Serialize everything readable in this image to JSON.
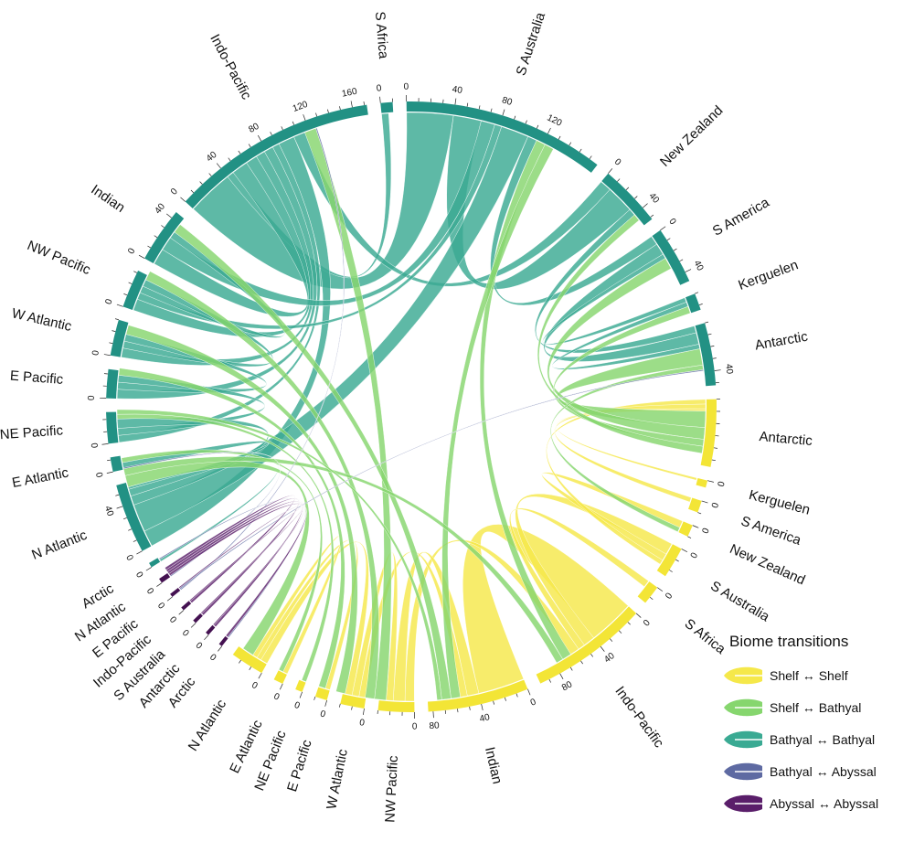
{
  "chart_data": {
    "type": "chord",
    "title": "",
    "legend": {
      "title": "Biome transitions",
      "items": [
        {
          "label": "Shelf ↔ Shelf",
          "color": "#f5e84a"
        },
        {
          "label": "Shelf ↔ Bathyal",
          "color": "#86d66e"
        },
        {
          "label": "Bathyal ↔ Bathyal",
          "color": "#3aaa93"
        },
        {
          "label": "Bathyal ↔ Abyssal",
          "color": "#5e6aa2"
        },
        {
          "label": "Abyssal ↔ Abyssal",
          "color": "#5a1e6a"
        }
      ]
    },
    "biome_colors": {
      "Bathyal": "#229184",
      "Shelf": "#f3e536",
      "Abyssal": "#441151"
    },
    "sectors": [
      {
        "name": "S Africa",
        "biome": "Bathyal",
        "total": 10,
        "ticks": [
          0
        ]
      },
      {
        "name": "S Australia",
        "biome": "Bathyal",
        "total": 168,
        "ticks": [
          0,
          40,
          80,
          120
        ]
      },
      {
        "name": "New Zealand",
        "biome": "Bathyal",
        "total": 52,
        "ticks": [
          0,
          40
        ]
      },
      {
        "name": "S America",
        "biome": "Bathyal",
        "total": 48,
        "ticks": [
          0,
          40
        ]
      },
      {
        "name": "Kerguelen",
        "biome": "Bathyal",
        "total": 14,
        "ticks": []
      },
      {
        "name": "Antarctic",
        "biome": "Bathyal",
        "total": 52,
        "ticks": [
          40
        ]
      },
      {
        "name": "Antarctic",
        "biome": "Shelf",
        "total": 56,
        "ticks": []
      },
      {
        "name": "Kerguelen",
        "biome": "Shelf",
        "total": 6,
        "ticks": [
          0
        ]
      },
      {
        "name": "S America",
        "biome": "Shelf",
        "total": 10,
        "ticks": [
          0
        ]
      },
      {
        "name": "New Zealand",
        "biome": "Shelf",
        "total": 10,
        "ticks": [
          0
        ]
      },
      {
        "name": "S Australia",
        "biome": "Shelf",
        "total": 26,
        "ticks": [
          0
        ]
      },
      {
        "name": "S Africa",
        "biome": "Shelf",
        "total": 16,
        "ticks": [
          0
        ]
      },
      {
        "name": "Indo-Pacific",
        "biome": "Shelf",
        "total": 98,
        "ticks": [
          0,
          40,
          80
        ]
      },
      {
        "name": "Indian",
        "biome": "Shelf",
        "total": 84,
        "ticks": [
          0,
          40,
          80
        ]
      },
      {
        "name": "NW Pacific",
        "biome": "Shelf",
        "total": 30,
        "ticks": [
          0
        ]
      },
      {
        "name": "W Atlantic",
        "biome": "Shelf",
        "total": 20,
        "ticks": [
          0
        ]
      },
      {
        "name": "E Pacific",
        "biome": "Shelf",
        "total": 10,
        "ticks": [
          0
        ]
      },
      {
        "name": "NE Pacific",
        "biome": "Shelf",
        "total": 6,
        "ticks": [
          0
        ]
      },
      {
        "name": "E Atlantic",
        "biome": "Shelf",
        "total": 8,
        "ticks": [
          0
        ]
      },
      {
        "name": "N Atlantic",
        "biome": "Shelf",
        "total": 28,
        "ticks": [
          0
        ]
      },
      {
        "name": "Arctic",
        "biome": "Abyssal",
        "total": 3,
        "ticks": [
          0
        ]
      },
      {
        "name": "Antarctic",
        "biome": "Abyssal",
        "total": 3,
        "ticks": [
          0
        ]
      },
      {
        "name": "S Australia",
        "biome": "Abyssal",
        "total": 3,
        "ticks": [
          0
        ]
      },
      {
        "name": "Indo-Pacific",
        "biome": "Abyssal",
        "total": 3,
        "ticks": [
          0
        ]
      },
      {
        "name": "E Pacific",
        "biome": "Abyssal",
        "total": 3,
        "ticks": [
          0
        ]
      },
      {
        "name": "N Atlantic",
        "biome": "Abyssal",
        "total": 4,
        "ticks": [
          0
        ]
      },
      {
        "name": "Arctic",
        "biome": "Bathyal",
        "total": 4,
        "ticks": [
          0
        ]
      },
      {
        "name": "N Atlantic",
        "biome": "Bathyal",
        "total": 58,
        "ticks": [
          0,
          40
        ]
      },
      {
        "name": "E Atlantic",
        "biome": "Bathyal",
        "total": 12,
        "ticks": [
          0
        ]
      },
      {
        "name": "NE Pacific",
        "biome": "Bathyal",
        "total": 26,
        "ticks": [
          0
        ]
      },
      {
        "name": "E Pacific",
        "biome": "Bathyal",
        "total": 24,
        "ticks": [
          0
        ]
      },
      {
        "name": "W Atlantic",
        "biome": "Bathyal",
        "total": 30,
        "ticks": [
          0
        ]
      },
      {
        "name": "NW Pacific",
        "biome": "Bathyal",
        "total": 32,
        "ticks": [
          0
        ]
      },
      {
        "name": "Indian",
        "biome": "Bathyal",
        "total": 46,
        "ticks": [
          0,
          40
        ]
      },
      {
        "name": "Indo-Pacific",
        "biome": "Bathyal",
        "total": 172,
        "ticks": [
          0,
          40,
          80,
          120,
          160
        ]
      }
    ],
    "links": [
      {
        "from": 34,
        "to": 1,
        "type": "Bathyal ↔ Bathyal",
        "value": 40
      },
      {
        "from": 34,
        "to": 0,
        "type": "Bathyal ↔ Bathyal",
        "value": 6
      },
      {
        "from": 34,
        "to": 33,
        "type": "Bathyal ↔ Bathyal",
        "value": 14
      },
      {
        "from": 34,
        "to": 32,
        "type": "Bathyal ↔ Bathyal",
        "value": 10
      },
      {
        "from": 34,
        "to": 31,
        "type": "Bathyal ↔ Bathyal",
        "value": 8
      },
      {
        "from": 34,
        "to": 30,
        "type": "Bathyal ↔ Bathyal",
        "value": 8
      },
      {
        "from": 34,
        "to": 29,
        "type": "Bathyal ↔ Bathyal",
        "value": 6
      },
      {
        "from": 34,
        "to": 27,
        "type": "Bathyal ↔ Bathyal",
        "value": 14
      },
      {
        "from": 34,
        "to": 2,
        "type": "Bathyal ↔ Bathyal",
        "value": 10
      },
      {
        "from": 1,
        "to": 2,
        "type": "Bathyal ↔ Bathyal",
        "value": 24
      },
      {
        "from": 1,
        "to": 33,
        "type": "Bathyal ↔ Bathyal",
        "value": 12
      },
      {
        "from": 1,
        "to": 32,
        "type": "Bathyal ↔ Bathyal",
        "value": 6
      },
      {
        "from": 1,
        "to": 27,
        "type": "Bathyal ↔ Bathyal",
        "value": 24
      },
      {
        "from": 1,
        "to": 3,
        "type": "Bathyal ↔ Bathyal",
        "value": 8
      },
      {
        "from": 2,
        "to": 5,
        "type": "Bathyal ↔ Bathyal",
        "value": 6
      },
      {
        "from": 3,
        "to": 5,
        "type": "Bathyal ↔ Bathyal",
        "value": 10
      },
      {
        "from": 3,
        "to": 4,
        "type": "Bathyal ↔ Bathyal",
        "value": 4
      },
      {
        "from": 4,
        "to": 5,
        "type": "Bathyal ↔ Bathyal",
        "value": 4
      },
      {
        "from": 33,
        "to": 32,
        "type": "Bathyal ↔ Bathyal",
        "value": 6
      },
      {
        "from": 32,
        "to": 31,
        "type": "Bathyal ↔ Bathyal",
        "value": 6
      },
      {
        "from": 31,
        "to": 30,
        "type": "Bathyal ↔ Bathyal",
        "value": 6
      },
      {
        "from": 30,
        "to": 29,
        "type": "Bathyal ↔ Bathyal",
        "value": 6
      },
      {
        "from": 29,
        "to": 27,
        "type": "Bathyal ↔ Bathyal",
        "value": 8
      },
      {
        "from": 28,
        "to": 27,
        "type": "Bathyal ↔ Bathyal",
        "value": 6
      },
      {
        "from": 26,
        "to": 27,
        "type": "Bathyal ↔ Bathyal",
        "value": 2
      },
      {
        "from": 13,
        "to": 12,
        "type": "Shelf ↔ Shelf",
        "value": 40
      },
      {
        "from": 12,
        "to": 10,
        "type": "Shelf ↔ Shelf",
        "value": 10
      },
      {
        "from": 12,
        "to": 11,
        "type": "Shelf ↔ Shelf",
        "value": 6
      },
      {
        "from": 12,
        "to": 14,
        "type": "Shelf ↔ Shelf",
        "value": 8
      },
      {
        "from": 13,
        "to": 14,
        "type": "Shelf ↔ Shelf",
        "value": 10
      },
      {
        "from": 13,
        "to": 15,
        "type": "Shelf ↔ Shelf",
        "value": 6
      },
      {
        "from": 14,
        "to": 15,
        "type": "Shelf ↔ Shelf",
        "value": 6
      },
      {
        "from": 15,
        "to": 19,
        "type": "Shelf ↔ Shelf",
        "value": 6
      },
      {
        "from": 16,
        "to": 19,
        "type": "Shelf ↔ Shelf",
        "value": 4
      },
      {
        "from": 18,
        "to": 19,
        "type": "Shelf ↔ Shelf",
        "value": 4
      },
      {
        "from": 10,
        "to": 9,
        "type": "Shelf ↔ Shelf",
        "value": 6
      },
      {
        "from": 10,
        "to": 6,
        "type": "Shelf ↔ Shelf",
        "value": 4
      },
      {
        "from": 6,
        "to": 8,
        "type": "Shelf ↔ Shelf",
        "value": 4
      },
      {
        "from": 6,
        "to": 7,
        "type": "Shelf ↔ Shelf",
        "value": 2
      },
      {
        "from": 34,
        "to": 14,
        "type": "Shelf ↔ Bathyal",
        "value": 10
      },
      {
        "from": 1,
        "to": 12,
        "type": "Shelf ↔ Bathyal",
        "value": 8
      },
      {
        "from": 1,
        "to": 13,
        "type": "Shelf ↔ Bathyal",
        "value": 8
      },
      {
        "from": 5,
        "to": 6,
        "type": "Shelf ↔ Bathyal",
        "value": 14
      },
      {
        "from": 3,
        "to": 6,
        "type": "Shelf ↔ Bathyal",
        "value": 10
      },
      {
        "from": 4,
        "to": 6,
        "type": "Shelf ↔ Bathyal",
        "value": 6
      },
      {
        "from": 2,
        "to": 6,
        "type": "Shelf ↔ Bathyal",
        "value": 6
      },
      {
        "from": 5,
        "to": 9,
        "type": "Shelf ↔ Bathyal",
        "value": 4
      },
      {
        "from": 33,
        "to": 13,
        "type": "Shelf ↔ Bathyal",
        "value": 8
      },
      {
        "from": 32,
        "to": 14,
        "type": "Shelf ↔ Bathyal",
        "value": 8
      },
      {
        "from": 31,
        "to": 15,
        "type": "Shelf ↔ Bathyal",
        "value": 8
      },
      {
        "from": 30,
        "to": 16,
        "type": "Shelf ↔ Bathyal",
        "value": 6
      },
      {
        "from": 29,
        "to": 17,
        "type": "Shelf ↔ Bathyal",
        "value": 4
      },
      {
        "from": 28,
        "to": 18,
        "type": "Shelf ↔ Bathyal",
        "value": 4
      },
      {
        "from": 27,
        "to": 19,
        "type": "Shelf ↔ Bathyal",
        "value": 10
      },
      {
        "from": 27,
        "to": 12,
        "type": "Shelf ↔ Bathyal",
        "value": 6
      },
      {
        "from": 29,
        "to": 13,
        "type": "Shelf ↔ Bathyal",
        "value": 4
      },
      {
        "from": 34,
        "to": 24,
        "type": "Bathyal ↔ Abyssal",
        "value": 1
      },
      {
        "from": 5,
        "to": 24,
        "type": "Bathyal ↔ Abyssal",
        "value": 1
      },
      {
        "from": 27,
        "to": 25,
        "type": "Bathyal ↔ Abyssal",
        "value": 1
      },
      {
        "from": 26,
        "to": 20,
        "type": "Bathyal ↔ Abyssal",
        "value": 1
      },
      {
        "from": 25,
        "to": 20,
        "type": "Abyssal ↔ Abyssal",
        "value": 2
      },
      {
        "from": 25,
        "to": 21,
        "type": "Abyssal ↔ Abyssal",
        "value": 2
      },
      {
        "from": 25,
        "to": 22,
        "type": "Abyssal ↔ Abyssal",
        "value": 2
      },
      {
        "from": 25,
        "to": 23,
        "type": "Abyssal ↔ Abyssal",
        "value": 2
      },
      {
        "from": 24,
        "to": 21,
        "type": "Abyssal ↔ Abyssal",
        "value": 1
      },
      {
        "from": 22,
        "to": 23,
        "type": "Abyssal ↔ Abyssal",
        "value": 1
      }
    ]
  }
}
